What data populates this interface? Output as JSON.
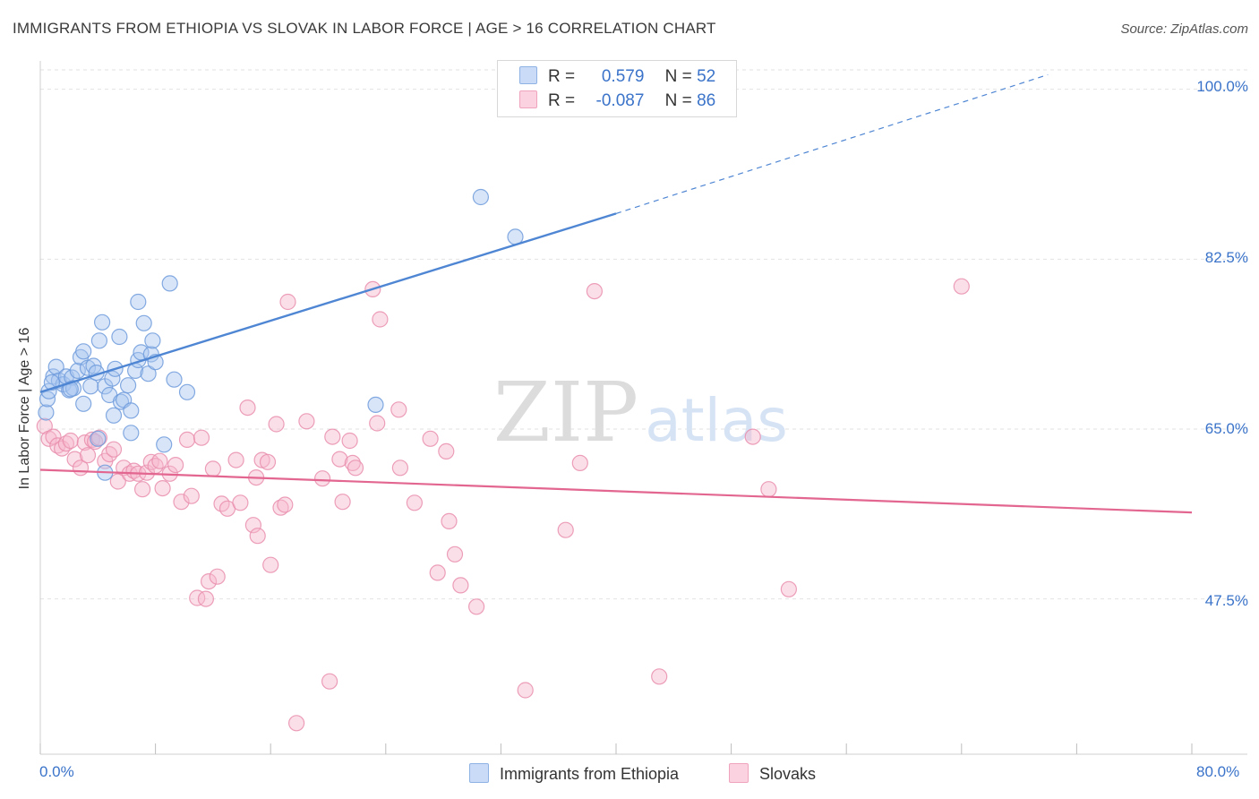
{
  "title": "IMMIGRANTS FROM ETHIOPIA VS SLOVAK IN LABOR FORCE | AGE > 16 CORRELATION CHART",
  "source": "Source: ZipAtlas.com",
  "watermark": {
    "zip": "ZIP",
    "atlas": "atlas"
  },
  "legend": {
    "rows": [
      {
        "r_label": "R =",
        "r_value": "0.579",
        "n_label": "N =",
        "n_value": "52",
        "color": "#a9c6f0"
      },
      {
        "r_label": "R =",
        "r_value": "-0.087",
        "n_label": "N =",
        "n_value": "86",
        "color": "#f6b8cc"
      }
    ]
  },
  "colors": {
    "blue": "#4f86d3",
    "blue_fill": "#a9c6f0",
    "pink": "#e2668f",
    "pink_fill": "#f6b8cc",
    "grid": "#e2e2e2"
  },
  "chart_data": {
    "type": "scatter",
    "title": "IMMIGRANTS FROM ETHIOPIA VS SLOVAK IN LABOR FORCE | AGE > 16 CORRELATION CHART",
    "xlabel": "",
    "ylabel": "In Labor Force | Age > 16",
    "xlim": [
      0,
      80
    ],
    "ylim": [
      31.5,
      102
    ],
    "x_tick_labels": [
      "0.0%",
      "80.0%"
    ],
    "y_ticks": [
      47.5,
      65.0,
      82.5,
      100.0
    ],
    "y_tick_labels": [
      "47.5%",
      "65.0%",
      "82.5%",
      "100.0%"
    ],
    "series": [
      {
        "name": "Immigrants from Ethiopia",
        "color": "#4f86d3",
        "r": 0.579,
        "n": 52,
        "trend": {
          "x0": 0,
          "y0": 68.8,
          "x1": 40,
          "y1": 87.2,
          "dashed_to_x": 70,
          "dashed_to_y": 101.5
        },
        "points": [
          [
            0.4,
            66.7
          ],
          [
            0.5,
            68.1
          ],
          [
            0.6,
            68.9
          ],
          [
            0.9,
            70.4
          ],
          [
            1.1,
            71.4
          ],
          [
            1.3,
            70.0
          ],
          [
            1.6,
            69.6
          ],
          [
            1.8,
            70.4
          ],
          [
            2.0,
            69.0
          ],
          [
            2.2,
            70.3
          ],
          [
            2.3,
            69.2
          ],
          [
            2.6,
            71.0
          ],
          [
            2.8,
            72.4
          ],
          [
            3.0,
            73.0
          ],
          [
            3.0,
            67.6
          ],
          [
            3.3,
            71.3
          ],
          [
            3.5,
            69.4
          ],
          [
            3.7,
            71.5
          ],
          [
            3.9,
            70.8
          ],
          [
            4.1,
            74.1
          ],
          [
            4.3,
            76.0
          ],
          [
            4.5,
            69.4
          ],
          [
            4.8,
            68.5
          ],
          [
            5.0,
            70.2
          ],
          [
            5.1,
            66.4
          ],
          [
            5.2,
            71.2
          ],
          [
            5.5,
            74.5
          ],
          [
            5.6,
            67.8
          ],
          [
            5.8,
            68.0
          ],
          [
            6.1,
            69.5
          ],
          [
            6.3,
            66.9
          ],
          [
            6.3,
            64.6
          ],
          [
            6.6,
            71.0
          ],
          [
            6.8,
            78.1
          ],
          [
            6.8,
            72.1
          ],
          [
            7.0,
            72.9
          ],
          [
            7.2,
            75.9
          ],
          [
            7.5,
            70.7
          ],
          [
            7.7,
            72.7
          ],
          [
            7.8,
            74.1
          ],
          [
            8.0,
            71.9
          ],
          [
            8.6,
            63.4
          ],
          [
            9.0,
            80.0
          ],
          [
            9.3,
            70.1
          ],
          [
            10.2,
            68.8
          ],
          [
            23.3,
            67.5
          ],
          [
            30.6,
            88.9
          ],
          [
            33.0,
            84.8
          ],
          [
            4.5,
            60.5
          ],
          [
            4.0,
            64.0
          ],
          [
            0.8,
            69.8
          ],
          [
            2.1,
            69.1
          ]
        ]
      },
      {
        "name": "Slovaks",
        "color": "#e2668f",
        "r": -0.087,
        "n": 86,
        "trend": {
          "x0": 0,
          "y0": 60.8,
          "x1": 80,
          "y1": 56.4
        },
        "points": [
          [
            0.3,
            65.3
          ],
          [
            0.6,
            64.0
          ],
          [
            0.9,
            64.2
          ],
          [
            1.2,
            63.3
          ],
          [
            1.5,
            63.0
          ],
          [
            1.8,
            63.5
          ],
          [
            2.1,
            63.8
          ],
          [
            2.4,
            61.9
          ],
          [
            2.8,
            61.0
          ],
          [
            3.1,
            63.6
          ],
          [
            3.3,
            62.3
          ],
          [
            3.6,
            63.9
          ],
          [
            3.8,
            63.7
          ],
          [
            4.1,
            64.1
          ],
          [
            4.5,
            61.7
          ],
          [
            4.8,
            62.4
          ],
          [
            5.1,
            62.9
          ],
          [
            5.4,
            59.6
          ],
          [
            5.8,
            61.0
          ],
          [
            6.2,
            60.4
          ],
          [
            6.5,
            60.7
          ],
          [
            6.8,
            60.4
          ],
          [
            7.1,
            58.8
          ],
          [
            7.4,
            60.5
          ],
          [
            7.7,
            61.6
          ],
          [
            8.0,
            61.2
          ],
          [
            8.3,
            61.7
          ],
          [
            8.5,
            58.9
          ],
          [
            9.0,
            60.4
          ],
          [
            9.4,
            61.3
          ],
          [
            9.8,
            57.5
          ],
          [
            10.2,
            63.9
          ],
          [
            10.5,
            58.1
          ],
          [
            10.9,
            47.6
          ],
          [
            11.2,
            64.1
          ],
          [
            11.5,
            47.5
          ],
          [
            11.7,
            49.3
          ],
          [
            12.0,
            60.9
          ],
          [
            12.3,
            49.8
          ],
          [
            12.6,
            57.3
          ],
          [
            13.0,
            56.8
          ],
          [
            13.6,
            61.8
          ],
          [
            13.9,
            57.4
          ],
          [
            14.4,
            67.2
          ],
          [
            14.8,
            55.1
          ],
          [
            15.1,
            54.0
          ],
          [
            15.4,
            61.8
          ],
          [
            15.8,
            61.6
          ],
          [
            16.0,
            51.0
          ],
          [
            16.4,
            65.5
          ],
          [
            16.7,
            56.9
          ],
          [
            17.0,
            57.2
          ],
          [
            17.2,
            78.1
          ],
          [
            17.8,
            34.7
          ],
          [
            18.5,
            65.8
          ],
          [
            19.6,
            59.9
          ],
          [
            20.1,
            39.0
          ],
          [
            20.3,
            64.2
          ],
          [
            20.8,
            61.9
          ],
          [
            21.0,
            57.5
          ],
          [
            21.5,
            63.8
          ],
          [
            21.7,
            61.5
          ],
          [
            21.9,
            61.0
          ],
          [
            23.1,
            79.4
          ],
          [
            23.4,
            65.6
          ],
          [
            23.6,
            76.3
          ],
          [
            24.9,
            67.0
          ],
          [
            26.0,
            57.4
          ],
          [
            27.1,
            64.0
          ],
          [
            27.6,
            50.2
          ],
          [
            28.2,
            62.7
          ],
          [
            28.4,
            55.5
          ],
          [
            28.8,
            52.1
          ],
          [
            29.2,
            48.9
          ],
          [
            30.3,
            46.7
          ],
          [
            33.7,
            38.1
          ],
          [
            36.5,
            54.6
          ],
          [
            38.5,
            79.2
          ],
          [
            43.0,
            39.5
          ],
          [
            49.5,
            64.2
          ],
          [
            50.6,
            58.8
          ],
          [
            52.0,
            48.5
          ],
          [
            64.0,
            79.7
          ],
          [
            37.5,
            61.5
          ],
          [
            15.0,
            60.0
          ],
          [
            25.0,
            61.0
          ]
        ]
      }
    ]
  }
}
